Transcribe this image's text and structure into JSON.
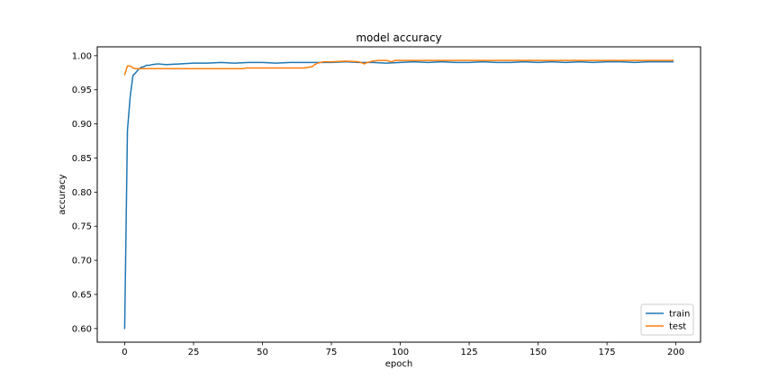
{
  "chart_data": {
    "type": "line",
    "title": "model accuracy",
    "xlabel": "epoch",
    "ylabel": "accuracy",
    "xlim": [
      -9.95,
      208.95
    ],
    "ylim": [
      0.58,
      1.013
    ],
    "xticks": [
      0,
      25,
      50,
      75,
      100,
      125,
      150,
      175,
      200
    ],
    "yticks": [
      0.6,
      0.65,
      0.7,
      0.75,
      0.8,
      0.85,
      0.9,
      0.95,
      1.0
    ],
    "ytick_labels": [
      "0.60",
      "0.65",
      "0.70",
      "0.75",
      "0.80",
      "0.85",
      "0.90",
      "0.95",
      "1.00"
    ],
    "grid": false,
    "legend_position": "lower right",
    "series": [
      {
        "name": "train",
        "color": "#1f77b4",
        "x": [
          0,
          1,
          2,
          3,
          4,
          5,
          6,
          7,
          8,
          9,
          10,
          12,
          15,
          20,
          25,
          30,
          35,
          40,
          45,
          50,
          55,
          60,
          65,
          70,
          75,
          80,
          85,
          90,
          95,
          100,
          105,
          110,
          115,
          120,
          125,
          130,
          135,
          140,
          145,
          150,
          155,
          160,
          165,
          170,
          175,
          180,
          185,
          190,
          195,
          199
        ],
        "y": [
          0.6,
          0.89,
          0.94,
          0.971,
          0.975,
          0.98,
          0.983,
          0.984,
          0.986,
          0.986,
          0.987,
          0.988,
          0.987,
          0.988,
          0.989,
          0.989,
          0.99,
          0.989,
          0.99,
          0.99,
          0.989,
          0.99,
          0.99,
          0.99,
          0.99,
          0.991,
          0.99,
          0.99,
          0.989,
          0.99,
          0.991,
          0.99,
          0.991,
          0.99,
          0.99,
          0.991,
          0.99,
          0.99,
          0.991,
          0.99,
          0.991,
          0.99,
          0.991,
          0.99,
          0.991,
          0.991,
          0.99,
          0.991,
          0.991,
          0.991
        ]
      },
      {
        "name": "test",
        "color": "#ff7f0e",
        "x": [
          0,
          1,
          2,
          3,
          4,
          5,
          10,
          20,
          30,
          43,
          44,
          45,
          55,
          65,
          68,
          69,
          70,
          71,
          72,
          75,
          80,
          85,
          87,
          88,
          89,
          90,
          92,
          95,
          97,
          98,
          100,
          110,
          120,
          130,
          140,
          150,
          160,
          170,
          180,
          190,
          199
        ],
        "y": [
          0.972,
          0.985,
          0.985,
          0.982,
          0.981,
          0.981,
          0.981,
          0.981,
          0.981,
          0.981,
          0.982,
          0.982,
          0.982,
          0.982,
          0.984,
          0.987,
          0.989,
          0.99,
          0.991,
          0.991,
          0.992,
          0.991,
          0.988,
          0.99,
          0.991,
          0.992,
          0.993,
          0.993,
          0.991,
          0.993,
          0.993,
          0.993,
          0.993,
          0.993,
          0.993,
          0.993,
          0.993,
          0.993,
          0.993,
          0.993,
          0.993
        ]
      }
    ]
  }
}
